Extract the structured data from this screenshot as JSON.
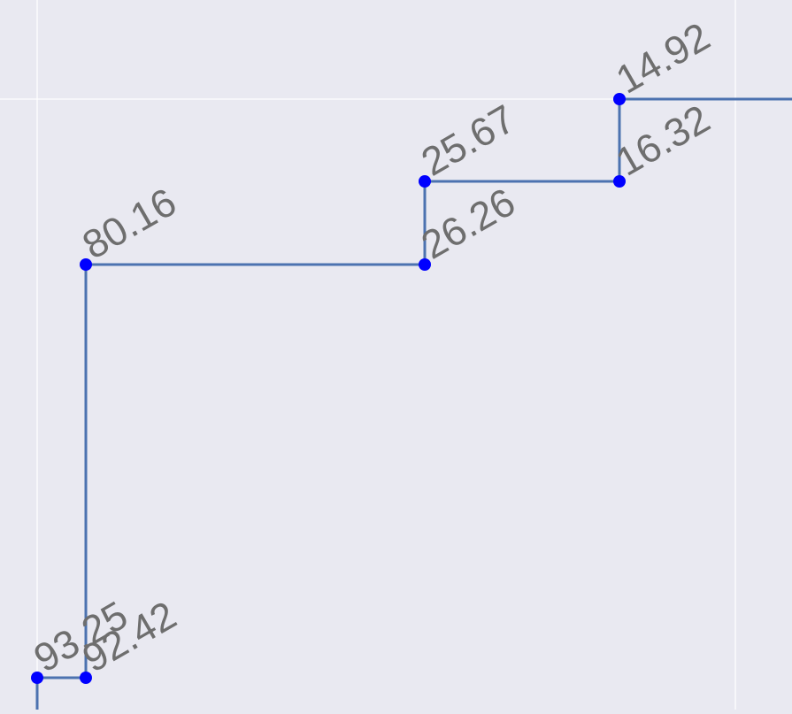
{
  "chart_data": {
    "type": "line",
    "line_shape": "step",
    "grid": true,
    "colors": {
      "background": "#e9e9f1",
      "grid": "#ffffff",
      "line": "#4c72b0",
      "marker": "#0000ff",
      "label": "#6e6e6e"
    },
    "title": "",
    "xlabel": "",
    "ylabel": "",
    "series": [
      {
        "values": [
          93.25,
          92.42,
          80.16,
          26.26,
          25.67,
          16.32,
          14.92
        ],
        "labels": [
          "93.25",
          "92.42",
          "80.16",
          "26.26",
          "25.67",
          "16.32",
          "14.92"
        ]
      }
    ]
  }
}
